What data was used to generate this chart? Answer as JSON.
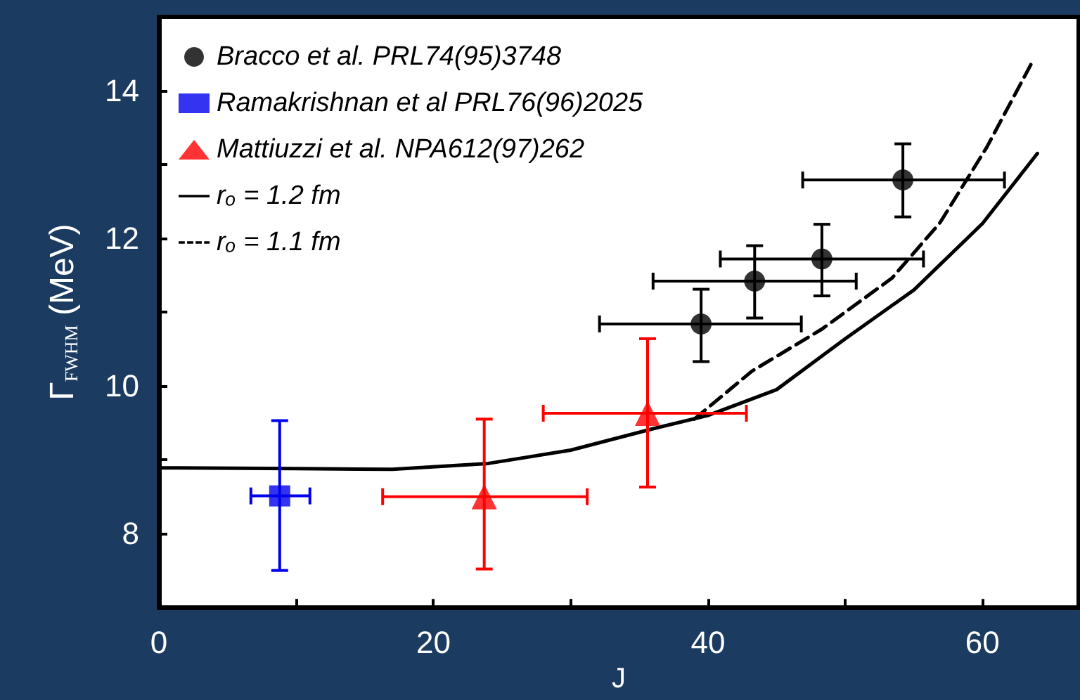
{
  "chart_data": {
    "type": "scatter",
    "xlabel": "J",
    "ylabel": "Γ$_{FWHM}$ (MeV)",
    "xlim": [
      0,
      67
    ],
    "xticks": [
      0,
      {
        "value": 10,
        "label": null
      },
      20,
      {
        "value": 30,
        "label": null
      },
      40,
      {
        "value": 50,
        "label": null
      },
      60
    ],
    "ylim": [
      7,
      15
    ],
    "yticks": [
      8,
      {
        "value": 9,
        "label": null
      },
      10,
      {
        "value": 11,
        "label": null
      },
      12,
      {
        "value": 13,
        "label": null
      },
      14
    ],
    "grid": false,
    "legend": "top left",
    "series": [
      {
        "name": "Bracco et al. PRL74(95)3748",
        "marker": "circle",
        "color": "#000000",
        "x": [
          39.5,
          43.4,
          48.3,
          54.2
        ],
        "values": [
          10.84,
          11.42,
          11.72,
          12.79
        ],
        "errors": [
          [
            10.33,
            11.31
          ],
          [
            10.92,
            11.9
          ],
          [
            11.22,
            12.19
          ],
          [
            12.29,
            13.28
          ]
        ],
        "xerrors": [
          [
            32.1,
            46.8
          ],
          [
            36.0,
            50.8
          ],
          [
            40.9,
            55.7
          ],
          [
            46.9,
            61.6
          ]
        ]
      },
      {
        "name": "Ramakrishnan et al PRL76(96)2025",
        "marker": "square",
        "color": "#0000ee",
        "x": [
          8.8
        ],
        "values": [
          8.51
        ],
        "errors": [
          [
            7.5,
            9.53
          ]
        ],
        "xerrors": [
          [
            6.7,
            11.0
          ]
        ]
      },
      {
        "name": "Mattiuzzi et al. NPA612(97)262",
        "marker": "triangle",
        "color": "#ff0000",
        "x": [
          23.7,
          35.6
        ],
        "values": [
          8.5,
          9.63
        ],
        "errors": [
          [
            7.52,
            9.55
          ],
          [
            8.63,
            10.64
          ]
        ],
        "xerrors": [
          [
            16.3,
            31.2
          ],
          [
            28.0,
            42.8
          ]
        ]
      },
      {
        "name": "rₒ = 1.2 fm",
        "type": "line",
        "marker": "none",
        "line_style": "solid",
        "color": "#000000",
        "x": [
          0,
          10,
          17,
          24,
          30,
          36,
          40,
          45,
          50,
          55,
          60,
          64
        ],
        "values": [
          8.89,
          8.88,
          8.87,
          8.95,
          9.13,
          9.42,
          9.6,
          9.95,
          10.64,
          11.3,
          12.2,
          13.15
        ]
      },
      {
        "name": "rₒ = 1.1 fm",
        "type": "line",
        "marker": "none",
        "line_style": "dashed",
        "color": "#000000",
        "x": [
          39,
          43.2,
          48.3,
          53.4,
          56.9,
          60.3,
          63.6
        ],
        "values": [
          9.55,
          10.2,
          10.77,
          11.46,
          12.21,
          13.23,
          14.38
        ]
      }
    ]
  }
}
